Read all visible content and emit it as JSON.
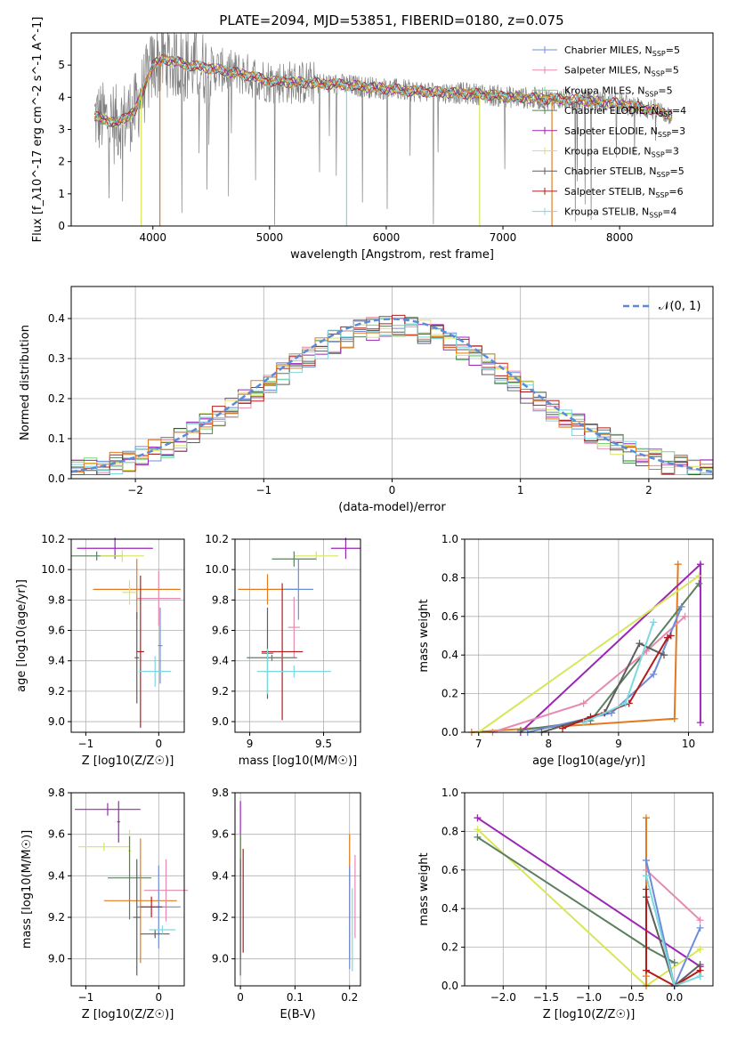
{
  "figure_title": "PLATE=2094, MJD=53851, FIBERID=0180, z=0.075",
  "series_colors": [
    "#6c8ed8",
    "#e68ab1",
    "#7fd37c",
    "#5b7f60",
    "#9b26b6",
    "#d8e65a",
    "#5e5e5e",
    "#b31c1c",
    "#7dd8e0"
  ],
  "highlight_colors": {
    "orange": "#e07b21",
    "grey": "#808080",
    "dashed_normal": "#5b8bd6"
  },
  "chart_data": [
    {
      "id": "spectrum",
      "type": "line",
      "title": "PLATE=2094, MJD=53851, FIBERID=0180, z=0.075",
      "xlabel": "wavelength [Angstrom, rest frame]",
      "ylabel": "Flux [f_λ10^-17 erg cm^-2 s^-1 A^-1]",
      "xlim": [
        3300,
        8800
      ],
      "ylim": [
        0,
        6.0
      ],
      "xticks": [
        4000,
        5000,
        6000,
        7000,
        8000
      ],
      "yticks": [
        0,
        1,
        2,
        3,
        4,
        5
      ],
      "grid": false,
      "legend_position": "top-right",
      "legend": [
        {
          "label": "Chabrier MILES, N",
          "sub": "SSP",
          "eq": "=5",
          "color": "#6c8ed8"
        },
        {
          "label": "Salpeter MILES, N",
          "sub": "SSP",
          "eq": "=5",
          "color": "#e68ab1"
        },
        {
          "label": "Kroupa MILES, N",
          "sub": "SSP",
          "eq": "=5",
          "color": "#7fd37c"
        },
        {
          "label": "Chabrier ELODIE, N",
          "sub": "SSP",
          "eq": "=4",
          "color": "#5b7f60"
        },
        {
          "label": "Salpeter ELODIE, N",
          "sub": "SSP",
          "eq": "=3",
          "color": "#9b26b6"
        },
        {
          "label": "Kroupa ELODIE, N",
          "sub": "SSP",
          "eq": "=3",
          "color": "#d8e65a"
        },
        {
          "label": "Chabrier STELIB, N",
          "sub": "SSP",
          "eq": "=5",
          "color": "#5e5e5e"
        },
        {
          "label": "Salpeter STELIB, N",
          "sub": "SSP",
          "eq": "=6",
          "color": "#b31c1c"
        },
        {
          "label": "Kroupa STELIB, N",
          "sub": "SSP",
          "eq": "=4",
          "color": "#7dd8e0"
        }
      ],
      "continuum": {
        "x": [
          3500,
          3700,
          3850,
          4000,
          4100,
          4300,
          4500,
          4800,
          5000,
          5300,
          5600,
          5900,
          6200,
          6500,
          6800,
          7100,
          7400,
          7700,
          8000,
          8300,
          8500
        ],
        "y": [
          3.4,
          3.2,
          3.6,
          5.0,
          5.2,
          5.0,
          4.9,
          4.7,
          4.5,
          4.45,
          4.4,
          4.3,
          4.2,
          4.15,
          4.1,
          4.0,
          3.95,
          3.9,
          3.8,
          3.6,
          3.4
        ]
      }
    },
    {
      "id": "residuals",
      "type": "histogram",
      "xlabel": "(data-model)/error",
      "ylabel": "Normed distribution",
      "xlim": [
        -2.5,
        2.5
      ],
      "ylim": [
        0,
        0.48
      ],
      "xticks": [
        -2,
        -1,
        0,
        1,
        2
      ],
      "yticks": [
        0.0,
        0.1,
        0.2,
        0.3,
        0.4
      ],
      "grid": true,
      "legend_position": "top-right",
      "legend": [
        {
          "label": "𝒩(0, 1)",
          "color": "#5b8bd6"
        }
      ],
      "bin_width": 0.1
    },
    {
      "id": "age_vs_Z",
      "type": "errorbar",
      "xlabel": "Z [log10(Z/Z☉)]",
      "ylabel": "age  [log10(age/yr)]",
      "xlim": [
        -1.2,
        0.35
      ],
      "ylim": [
        8.93,
        10.2
      ],
      "xticks": [
        -1,
        0
      ],
      "yticks": [
        9.0,
        9.2,
        9.4,
        9.6,
        9.8,
        10.0,
        10.2
      ],
      "grid": true,
      "points": [
        {
          "x": -0.6,
          "y": 10.14,
          "xerr": 0.52,
          "yerr": 0.07,
          "color": "#9b26b6"
        },
        {
          "x": -0.85,
          "y": 10.09,
          "xerr": 0.35,
          "yerr": 0.03,
          "color": "#5b7f60"
        },
        {
          "x": -0.5,
          "y": 10.09,
          "xerr": 0.3,
          "yerr": 0.04,
          "color": "#d8e65a"
        },
        {
          "x": 0.0,
          "y": 9.81,
          "xerr": 0.3,
          "yerr": 0.18,
          "color": "#e68ab1"
        },
        {
          "x": -0.3,
          "y": 9.87,
          "xerr": 0.6,
          "yerr": 0.2,
          "color": "#e07b21"
        },
        {
          "x": -0.4,
          "y": 9.85,
          "xerr": 0.1,
          "yerr": 0.08,
          "color": "#d8e65a"
        },
        {
          "x": -0.25,
          "y": 9.46,
          "xerr": 0.05,
          "yerr": 0.5,
          "color": "#b31c1c"
        },
        {
          "x": -0.3,
          "y": 9.42,
          "xerr": 0.03,
          "yerr": 0.3,
          "color": "#5e5e5e"
        },
        {
          "x": 0.02,
          "y": 9.5,
          "xerr": 0.03,
          "yerr": 0.25,
          "color": "#6c8ed8"
        },
        {
          "x": -0.05,
          "y": 9.33,
          "xerr": 0.22,
          "yerr": 0.1,
          "color": "#7dd8e0"
        }
      ]
    },
    {
      "id": "age_vs_mass",
      "type": "errorbar",
      "xlabel": "mass [log10(M/M☉)]",
      "ylabel": "",
      "xlim": [
        8.9,
        9.75
      ],
      "ylim": [
        8.93,
        10.2
      ],
      "xticks": [
        9.0,
        9.5
      ],
      "yticks": [
        9.0,
        9.2,
        9.4,
        9.6,
        9.8,
        10.0,
        10.2
      ],
      "grid": true,
      "points": [
        {
          "x": 9.65,
          "y": 10.14,
          "xerr": 0.1,
          "yerr": 0.07,
          "color": "#9b26b6"
        },
        {
          "x": 9.45,
          "y": 10.09,
          "xerr": 0.15,
          "yerr": 0.03,
          "color": "#d8e65a"
        },
        {
          "x": 9.3,
          "y": 10.07,
          "xerr": 0.15,
          "yerr": 0.05,
          "color": "#5b7f60"
        },
        {
          "x": 9.12,
          "y": 9.87,
          "xerr": 0.2,
          "yerr": 0.1,
          "color": "#e07b21"
        },
        {
          "x": 9.33,
          "y": 9.87,
          "xerr": 0.1,
          "yerr": 0.2,
          "color": "#6c8ed8"
        },
        {
          "x": 9.3,
          "y": 9.62,
          "xerr": 0.04,
          "yerr": 0.2,
          "color": "#e68ab1"
        },
        {
          "x": 9.22,
          "y": 9.46,
          "xerr": 0.14,
          "yerr": 0.45,
          "color": "#b31c1c"
        },
        {
          "x": 9.12,
          "y": 9.45,
          "xerr": 0.04,
          "yerr": 0.3,
          "color": "#5e5e5e"
        },
        {
          "x": 9.15,
          "y": 9.42,
          "xerr": 0.17,
          "yerr": 0.02,
          "color": "#5b7f60"
        },
        {
          "x": 9.3,
          "y": 9.33,
          "xerr": 0.25,
          "yerr": 0.04,
          "color": "#7dd8e0"
        },
        {
          "x": 9.12,
          "y": 9.33,
          "xerr": 0.02,
          "yerr": 0.15,
          "color": "#7dd8e0"
        }
      ]
    },
    {
      "id": "massweight_vs_age",
      "type": "line",
      "xlabel": "age  [log10(age/yr)]",
      "ylabel": "mass weight",
      "xlim": [
        6.8,
        10.35
      ],
      "ylim": [
        0,
        1.0
      ],
      "xticks": [
        7,
        8,
        9,
        10
      ],
      "yticks": [
        0.0,
        0.2,
        0.4,
        0.6,
        0.8,
        1.0
      ],
      "grid": true,
      "series": [
        {
          "color": "#e07b21",
          "x": [
            6.9,
            9.8,
            9.85
          ],
          "y": [
            0.0,
            0.07,
            0.87
          ]
        },
        {
          "color": "#9b26b6",
          "x": [
            7.6,
            10.17,
            10.17
          ],
          "y": [
            0.0,
            0.87,
            0.05
          ]
        },
        {
          "color": "#d8e65a",
          "x": [
            7.0,
            10.15
          ],
          "y": [
            0.0,
            0.81
          ]
        },
        {
          "color": "#5b7f60",
          "x": [
            7.6,
            8.6,
            10.15
          ],
          "y": [
            0.01,
            0.06,
            0.77
          ]
        },
        {
          "color": "#e68ab1",
          "x": [
            7.2,
            8.5,
            9.4,
            9.95
          ],
          "y": [
            0.0,
            0.15,
            0.42,
            0.6
          ]
        },
        {
          "color": "#6c8ed8",
          "x": [
            7.7,
            8.9,
            9.5,
            9.9
          ],
          "y": [
            0.0,
            0.1,
            0.3,
            0.65
          ]
        },
        {
          "color": "#5e5e5e",
          "x": [
            7.9,
            8.8,
            9.3,
            9.65
          ],
          "y": [
            0.0,
            0.1,
            0.46,
            0.4
          ]
        },
        {
          "color": "#b31c1c",
          "x": [
            8.2,
            8.6,
            8.8,
            9.15,
            9.7,
            9.75
          ],
          "y": [
            0.02,
            0.08,
            0.1,
            0.15,
            0.49,
            0.5
          ]
        },
        {
          "color": "#7dd8e0",
          "x": [
            8.5,
            9.1,
            9.5
          ],
          "y": [
            0.05,
            0.15,
            0.57
          ]
        }
      ]
    },
    {
      "id": "mass_vs_Z",
      "type": "errorbar",
      "xlabel": "Z [log10(Z/Z☉)]",
      "ylabel": "mass [log10(M/M☉)]",
      "xlim": [
        -1.2,
        0.35
      ],
      "ylim": [
        8.87,
        9.8
      ],
      "xticks": [
        -1,
        0
      ],
      "yticks": [
        9.0,
        9.2,
        9.4,
        9.6,
        9.8
      ],
      "grid": true,
      "points": [
        {
          "x": -0.7,
          "y": 9.72,
          "xerr": 0.45,
          "yerr": 0.03,
          "color": "#9b26b6"
        },
        {
          "x": -0.55,
          "y": 9.66,
          "xerr": 0.02,
          "yerr": 0.1,
          "color": "#9b26b6"
        },
        {
          "x": -0.75,
          "y": 9.54,
          "xerr": 0.35,
          "yerr": 0.02,
          "color": "#d8e65a"
        },
        {
          "x": -0.4,
          "y": 9.52,
          "xerr": 0.02,
          "yerr": 0.1,
          "color": "#d8e65a"
        },
        {
          "x": -0.4,
          "y": 9.39,
          "xerr": 0.3,
          "yerr": 0.2,
          "color": "#5b7f60"
        },
        {
          "x": -0.25,
          "y": 9.28,
          "xerr": 0.5,
          "yerr": 0.3,
          "color": "#e07b21"
        },
        {
          "x": 0.1,
          "y": 9.33,
          "xerr": 0.3,
          "yerr": 0.15,
          "color": "#e68ab1"
        },
        {
          "x": 0.0,
          "y": 9.25,
          "xerr": 0.3,
          "yerr": 0.2,
          "color": "#6c8ed8"
        },
        {
          "x": -0.3,
          "y": 9.2,
          "xerr": 0.05,
          "yerr": 0.28,
          "color": "#5e5e5e"
        },
        {
          "x": -0.1,
          "y": 9.25,
          "xerr": 0.15,
          "yerr": 0.05,
          "color": "#b31c1c"
        },
        {
          "x": -0.05,
          "y": 9.12,
          "xerr": 0.2,
          "yerr": 0.02,
          "color": "#5e5e5e"
        },
        {
          "x": 0.05,
          "y": 9.14,
          "xerr": 0.18,
          "yerr": 0.02,
          "color": "#7dd8e0"
        }
      ]
    },
    {
      "id": "mass_vs_EBV",
      "type": "errorbar",
      "xlabel": "E(B-V)",
      "ylabel": "",
      "xlim": [
        -0.01,
        0.22
      ],
      "ylim": [
        8.87,
        9.8
      ],
      "xticks": [
        0.0,
        0.1,
        0.2
      ],
      "yticks": [
        9.0,
        9.2,
        9.4,
        9.6,
        9.8
      ],
      "grid": true,
      "points": [
        {
          "x": 0.0,
          "y": 9.58,
          "xerr": 0.0,
          "yerr": 0.18,
          "color": "#9b26b6"
        },
        {
          "x": 0.0,
          "y": 9.5,
          "xerr": 0.0,
          "yerr": 0.1,
          "color": "#d8e65a"
        },
        {
          "x": 0.0,
          "y": 9.3,
          "xerr": 0.0,
          "yerr": 0.3,
          "color": "#5b7f60"
        },
        {
          "x": 0.005,
          "y": 9.28,
          "xerr": 0.0,
          "yerr": 0.25,
          "color": "#b31c1c"
        },
        {
          "x": 0.0,
          "y": 9.2,
          "xerr": 0.0,
          "yerr": 0.28,
          "color": "#5e5e5e"
        },
        {
          "x": 0.2,
          "y": 9.3,
          "xerr": 0.0,
          "yerr": 0.3,
          "color": "#e07b21"
        },
        {
          "x": 0.21,
          "y": 9.3,
          "xerr": 0.0,
          "yerr": 0.2,
          "color": "#e68ab1"
        },
        {
          "x": 0.2,
          "y": 9.2,
          "xerr": 0.0,
          "yerr": 0.25,
          "color": "#6c8ed8"
        },
        {
          "x": 0.205,
          "y": 9.14,
          "xerr": 0.0,
          "yerr": 0.2,
          "color": "#7dd8e0"
        }
      ]
    },
    {
      "id": "massweight_vs_Z",
      "type": "line",
      "xlabel": "Z [log10(Z/Z☉)]",
      "ylabel": "mass weight",
      "xlim": [
        -2.45,
        0.45
      ],
      "ylim": [
        0,
        1.0
      ],
      "xticks": [
        -2.0,
        -1.5,
        -1.0,
        -0.5,
        0.0
      ],
      "xticklabels": [
        "−2.0",
        "−1.5",
        "−1.0",
        "−0.5",
        "0.0"
      ],
      "yticks": [
        0.0,
        0.2,
        0.4,
        0.6,
        0.8,
        1.0
      ],
      "grid": true,
      "series": [
        {
          "color": "#9b26b6",
          "x": [
            -2.3,
            0.3,
            0.3
          ],
          "y": [
            0.87,
            0.1,
            0.05
          ]
        },
        {
          "color": "#d8e65a",
          "x": [
            -2.3,
            -0.33,
            0.3
          ],
          "y": [
            0.81,
            0.0,
            0.19
          ]
        },
        {
          "color": "#5b7f60",
          "x": [
            -2.3,
            -0.33,
            0.0
          ],
          "y": [
            0.77,
            0.2,
            0.12
          ]
        },
        {
          "color": "#e07b21",
          "x": [
            -0.33,
            -0.33,
            -0.33
          ],
          "y": [
            0.87,
            0.05,
            0.0
          ]
        },
        {
          "color": "#e68ab1",
          "x": [
            -0.33,
            0.3
          ],
          "y": [
            0.6,
            0.34
          ]
        },
        {
          "color": "#6c8ed8",
          "x": [
            -0.33,
            0.0,
            0.3
          ],
          "y": [
            0.65,
            0.0,
            0.3
          ]
        },
        {
          "color": "#5e5e5e",
          "x": [
            -0.33,
            0.0,
            0.3
          ],
          "y": [
            0.46,
            0.0,
            0.11
          ]
        },
        {
          "color": "#b31c1c",
          "x": [
            -0.33,
            -0.33,
            0.0,
            0.3
          ],
          "y": [
            0.5,
            0.08,
            0.0,
            0.08
          ]
        },
        {
          "color": "#7dd8e0",
          "x": [
            -0.33,
            0.0,
            0.3
          ],
          "y": [
            0.57,
            0.0,
            0.05
          ]
        }
      ]
    }
  ]
}
